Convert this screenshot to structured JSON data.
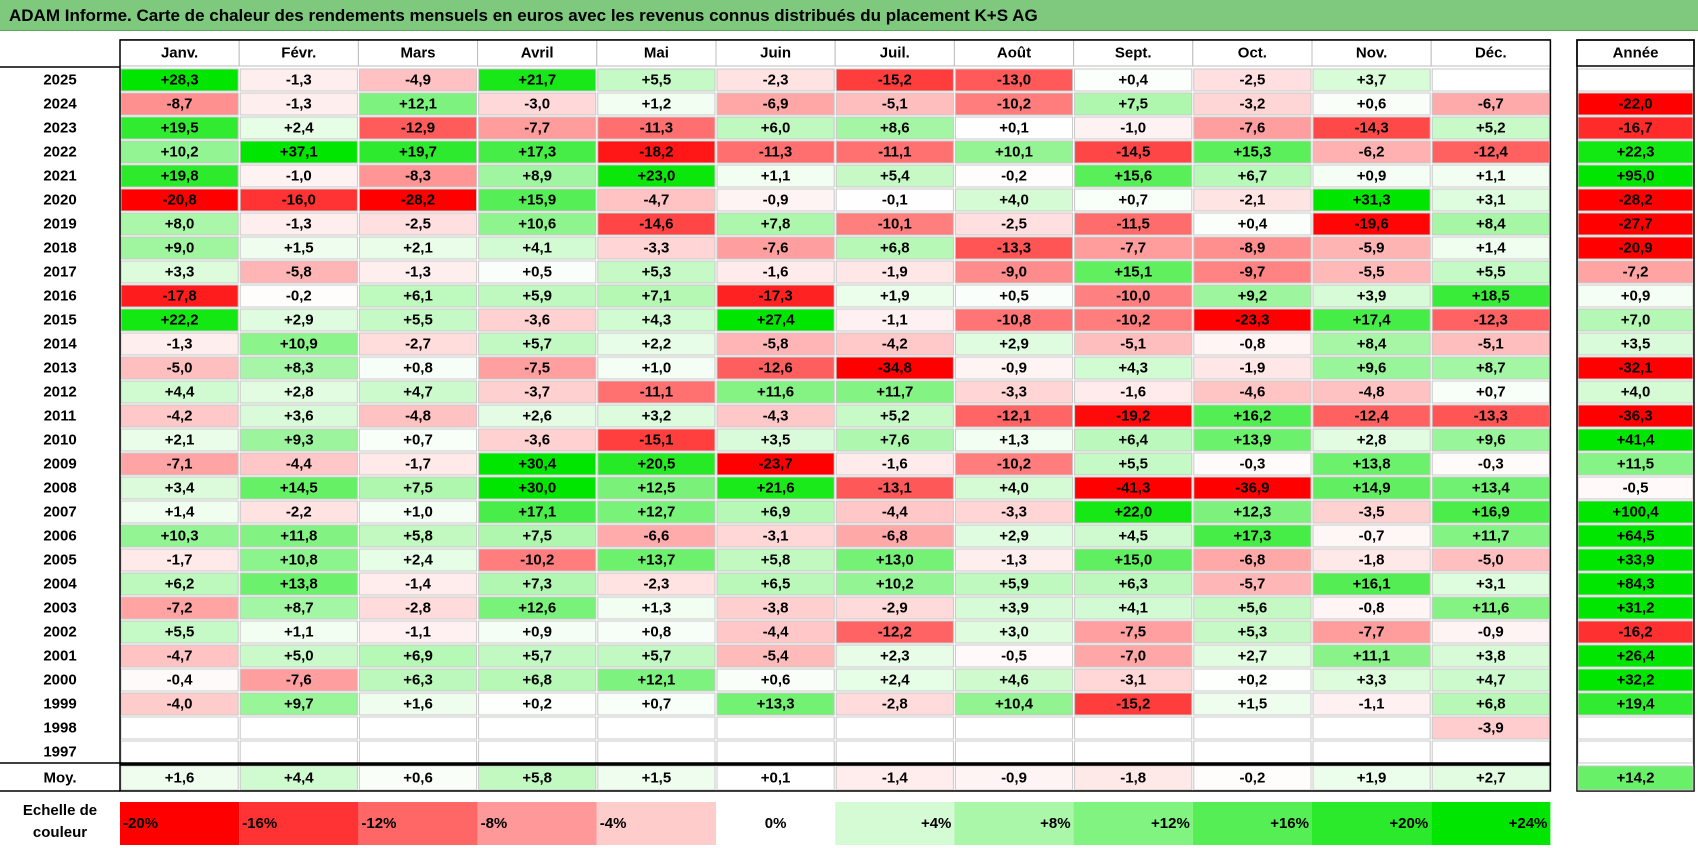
{
  "title": "ADAM Informe. Carte de chaleur des rendements mensuels en euros avec les revenus connus distribués du placement K+S AG",
  "chart_data": {
    "type": "heatmap",
    "title": "ADAM Informe. Carte de chaleur des rendements mensuels en euros avec les revenus connus distribués du placement K+S AG",
    "months": [
      "Janv.",
      "Févr.",
      "Mars",
      "Avril",
      "Mai",
      "Juin",
      "Juil.",
      "Août",
      "Sept.",
      "Oct.",
      "Nov.",
      "Déc."
    ],
    "year_header": "Année",
    "average_label": "Moy.",
    "rows": [
      {
        "year": "2025",
        "values": [
          "+28,3",
          "-1,3",
          "-4,9",
          "+21,7",
          "+5,5",
          "-2,3",
          "-15,2",
          "-13,0",
          "+0,4",
          "-2,5",
          "+3,7",
          ""
        ],
        "annual": ""
      },
      {
        "year": "2024",
        "values": [
          "-8,7",
          "-1,3",
          "+12,1",
          "-3,0",
          "+1,2",
          "-6,9",
          "-5,1",
          "-10,2",
          "+7,5",
          "-3,2",
          "+0,6",
          "-6,7"
        ],
        "annual": "-22,0"
      },
      {
        "year": "2023",
        "values": [
          "+19,5",
          "+2,4",
          "-12,9",
          "-7,7",
          "-11,3",
          "+6,0",
          "+8,6",
          "+0,1",
          "-1,0",
          "-7,6",
          "-14,3",
          "+5,2"
        ],
        "annual": "-16,7"
      },
      {
        "year": "2022",
        "values": [
          "+10,2",
          "+37,1",
          "+19,7",
          "+17,3",
          "-18,2",
          "-11,3",
          "-11,1",
          "+10,1",
          "-14,5",
          "+15,3",
          "-6,2",
          "-12,4"
        ],
        "annual": "+22,3"
      },
      {
        "year": "2021",
        "values": [
          "+19,8",
          "-1,0",
          "-8,3",
          "+8,9",
          "+23,0",
          "+1,1",
          "+5,4",
          "-0,2",
          "+15,6",
          "+6,7",
          "+0,9",
          "+1,1"
        ],
        "annual": "+95,0"
      },
      {
        "year": "2020",
        "values": [
          "-20,8",
          "-16,0",
          "-28,2",
          "+15,9",
          "-4,7",
          "-0,9",
          "-0,1",
          "+4,0",
          "+0,7",
          "-2,1",
          "+31,3",
          "+3,1"
        ],
        "annual": "-28,2"
      },
      {
        "year": "2019",
        "values": [
          "+8,0",
          "-1,3",
          "-2,5",
          "+10,6",
          "-14,6",
          "+7,8",
          "-10,1",
          "-2,5",
          "-11,5",
          "+0,4",
          "-19,6",
          "+8,4"
        ],
        "annual": "-27,7"
      },
      {
        "year": "2018",
        "values": [
          "+9,0",
          "+1,5",
          "+2,1",
          "+4,1",
          "-3,3",
          "-7,6",
          "+6,8",
          "-13,3",
          "-7,7",
          "-8,9",
          "-5,9",
          "+1,4"
        ],
        "annual": "-20,9"
      },
      {
        "year": "2017",
        "values": [
          "+3,3",
          "-5,8",
          "-1,3",
          "+0,5",
          "+5,3",
          "-1,6",
          "-1,9",
          "-9,0",
          "+15,1",
          "-9,7",
          "-5,5",
          "+5,5"
        ],
        "annual": "-7,2"
      },
      {
        "year": "2016",
        "values": [
          "-17,8",
          "-0,2",
          "+6,1",
          "+5,9",
          "+7,1",
          "-17,3",
          "+1,9",
          "+0,5",
          "-10,0",
          "+9,2",
          "+3,9",
          "+18,5"
        ],
        "annual": "+0,9"
      },
      {
        "year": "2015",
        "values": [
          "+22,2",
          "+2,9",
          "+5,5",
          "-3,6",
          "+4,3",
          "+27,4",
          "-1,1",
          "-10,8",
          "-10,2",
          "-23,3",
          "+17,4",
          "-12,3"
        ],
        "annual": "+7,0"
      },
      {
        "year": "2014",
        "values": [
          "-1,3",
          "+10,9",
          "-2,7",
          "+5,7",
          "+2,2",
          "-5,8",
          "-4,2",
          "+2,9",
          "-5,1",
          "-0,8",
          "+8,4",
          "-5,1"
        ],
        "annual": "+3,5"
      },
      {
        "year": "2013",
        "values": [
          "-5,0",
          "+8,3",
          "+0,8",
          "-7,5",
          "+1,0",
          "-12,6",
          "-34,8",
          "-0,9",
          "+4,3",
          "-1,9",
          "+9,6",
          "+8,7"
        ],
        "annual": "-32,1"
      },
      {
        "year": "2012",
        "values": [
          "+4,4",
          "+2,8",
          "+4,7",
          "-3,7",
          "-11,1",
          "+11,6",
          "+11,7",
          "-3,3",
          "-1,6",
          "-4,6",
          "-4,8",
          "+0,7"
        ],
        "annual": "+4,0"
      },
      {
        "year": "2011",
        "values": [
          "-4,2",
          "+3,6",
          "-4,8",
          "+2,6",
          "+3,2",
          "-4,3",
          "+5,2",
          "-12,1",
          "-19,2",
          "+16,2",
          "-12,4",
          "-13,3"
        ],
        "annual": "-36,3"
      },
      {
        "year": "2010",
        "values": [
          "+2,1",
          "+9,3",
          "+0,7",
          "-3,6",
          "-15,1",
          "+3,5",
          "+7,6",
          "+1,3",
          "+6,4",
          "+13,9",
          "+2,8",
          "+9,6"
        ],
        "annual": "+41,4"
      },
      {
        "year": "2009",
        "values": [
          "-7,1",
          "-4,4",
          "-1,7",
          "+30,4",
          "+20,5",
          "-23,7",
          "-1,6",
          "-10,2",
          "+5,5",
          "-0,3",
          "+13,8",
          "-0,3"
        ],
        "annual": "+11,5"
      },
      {
        "year": "2008",
        "values": [
          "+3,4",
          "+14,5",
          "+7,5",
          "+30,0",
          "+12,5",
          "+21,6",
          "-13,1",
          "+4,0",
          "-41,3",
          "-36,9",
          "+14,9",
          "+13,4"
        ],
        "annual": "-0,5"
      },
      {
        "year": "2007",
        "values": [
          "+1,4",
          "-2,2",
          "+1,0",
          "+17,1",
          "+12,7",
          "+6,9",
          "-4,4",
          "-3,3",
          "+22,0",
          "+12,3",
          "-3,5",
          "+16,9"
        ],
        "annual": "+100,4"
      },
      {
        "year": "2006",
        "values": [
          "+10,3",
          "+11,8",
          "+5,8",
          "+7,5",
          "-6,6",
          "-3,1",
          "-6,8",
          "+2,9",
          "+4,5",
          "+17,3",
          "-0,7",
          "+11,7"
        ],
        "annual": "+64,5"
      },
      {
        "year": "2005",
        "values": [
          "-1,7",
          "+10,8",
          "+2,4",
          "-10,2",
          "+13,7",
          "+5,8",
          "+13,0",
          "-1,3",
          "+15,0",
          "-6,8",
          "-1,8",
          "-5,0"
        ],
        "annual": "+33,9"
      },
      {
        "year": "2004",
        "values": [
          "+6,2",
          "+13,8",
          "-1,4",
          "+7,3",
          "-2,3",
          "+6,5",
          "+10,2",
          "+5,9",
          "+6,3",
          "-5,7",
          "+16,1",
          "+3,1"
        ],
        "annual": "+84,3"
      },
      {
        "year": "2003",
        "values": [
          "-7,2",
          "+8,7",
          "-2,8",
          "+12,6",
          "+1,3",
          "-3,8",
          "-2,9",
          "+3,9",
          "+4,1",
          "+5,6",
          "-0,8",
          "+11,6"
        ],
        "annual": "+31,2"
      },
      {
        "year": "2002",
        "values": [
          "+5,5",
          "+1,1",
          "-1,1",
          "+0,9",
          "+0,8",
          "-4,4",
          "-12,2",
          "+3,0",
          "-7,5",
          "+5,3",
          "-7,7",
          "-0,9"
        ],
        "annual": "-16,2"
      },
      {
        "year": "2001",
        "values": [
          "-4,7",
          "+5,0",
          "+6,9",
          "+5,7",
          "+5,7",
          "-5,4",
          "+2,3",
          "-0,5",
          "-7,0",
          "+2,7",
          "+11,1",
          "+3,8"
        ],
        "annual": "+26,4"
      },
      {
        "year": "2000",
        "values": [
          "-0,4",
          "-7,6",
          "+6,3",
          "+6,8",
          "+12,1",
          "+0,6",
          "+2,4",
          "+4,6",
          "-3,1",
          "+0,2",
          "+3,3",
          "+4,7"
        ],
        "annual": "+32,2"
      },
      {
        "year": "1999",
        "values": [
          "-4,0",
          "+9,7",
          "+1,6",
          "+0,2",
          "+0,7",
          "+13,3",
          "-2,8",
          "+10,4",
          "-15,2",
          "+1,5",
          "-1,1",
          "+6,8"
        ],
        "annual": "+19,4"
      },
      {
        "year": "1998",
        "values": [
          "",
          "",
          "",
          "",
          "",
          "",
          "",
          "",
          "",
          "",
          "",
          "-3,9"
        ],
        "annual": ""
      },
      {
        "year": "1997",
        "values": [
          "",
          "",
          "",
          "",
          "",
          "",
          "",
          "",
          "",
          "",
          "",
          ""
        ],
        "annual": ""
      }
    ],
    "average": {
      "values": [
        "+1,6",
        "+4,4",
        "+0,6",
        "+5,8",
        "+1,5",
        "+0,1",
        "-1,4",
        "-0,9",
        "-1,8",
        "-0,2",
        "+1,9",
        "+2,7"
      ],
      "annual": "+14,2"
    },
    "color_scale": {
      "label": "Echelle de couleur",
      "steps": [
        "-20%",
        "-16%",
        "-12%",
        "-8%",
        "-4%",
        "0%",
        "+4%",
        "+8%",
        "+12%",
        "+16%",
        "+20%",
        "+24%"
      ],
      "step_values": [
        -20,
        -16,
        -12,
        -8,
        -4,
        0,
        4,
        8,
        12,
        16,
        20,
        24
      ],
      "negative_color": "#ff0000",
      "neutral_color": "#ffffff",
      "positive_color": "#00e600"
    }
  }
}
